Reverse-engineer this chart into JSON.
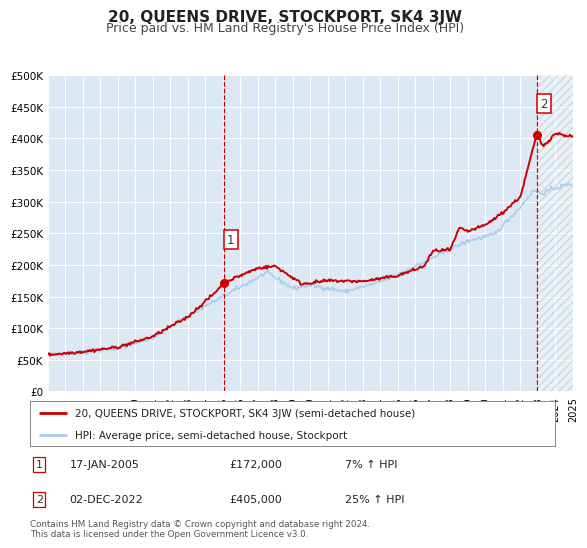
{
  "title": "20, QUEENS DRIVE, STOCKPORT, SK4 3JW",
  "subtitle": "Price paid vs. HM Land Registry's House Price Index (HPI)",
  "title_fontsize": 11,
  "subtitle_fontsize": 9,
  "background_color": "#ffffff",
  "plot_bg_color": "#dce9f5",
  "grid_color": "#ffffff",
  "ylabel_ticks": [
    "£0",
    "£50K",
    "£100K",
    "£150K",
    "£200K",
    "£250K",
    "£300K",
    "£350K",
    "£400K",
    "£450K",
    "£500K"
  ],
  "ytick_values": [
    0,
    50000,
    100000,
    150000,
    200000,
    250000,
    300000,
    350000,
    400000,
    450000,
    500000
  ],
  "xmin": 1995,
  "xmax": 2025,
  "ymin": 0,
  "ymax": 500000,
  "red_line_color": "#cc0000",
  "blue_line_color": "#aaccee",
  "marker_color": "#cc0000",
  "vline_color": "#cc0000",
  "sale1_year": 2005.04,
  "sale1_price": 172000,
  "sale2_year": 2022.92,
  "sale2_price": 405000,
  "legend_line1": "20, QUEENS DRIVE, STOCKPORT, SK4 3JW (semi-detached house)",
  "legend_line2": "HPI: Average price, semi-detached house, Stockport",
  "table_row1_num": "1",
  "table_row1_date": "17-JAN-2005",
  "table_row1_price": "£172,000",
  "table_row1_pct": "7% ↑ HPI",
  "table_row2_num": "2",
  "table_row2_date": "02-DEC-2022",
  "table_row2_price": "£405,000",
  "table_row2_pct": "25% ↑ HPI",
  "footer": "Contains HM Land Registry data © Crown copyright and database right 2024.\nThis data is licensed under the Open Government Licence v3.0.",
  "xtick_years": [
    1995,
    1996,
    1997,
    1998,
    1999,
    2000,
    2001,
    2002,
    2003,
    2004,
    2005,
    2006,
    2007,
    2008,
    2009,
    2010,
    2011,
    2012,
    2013,
    2014,
    2015,
    2016,
    2017,
    2018,
    2019,
    2020,
    2021,
    2022,
    2023,
    2024,
    2025
  ]
}
